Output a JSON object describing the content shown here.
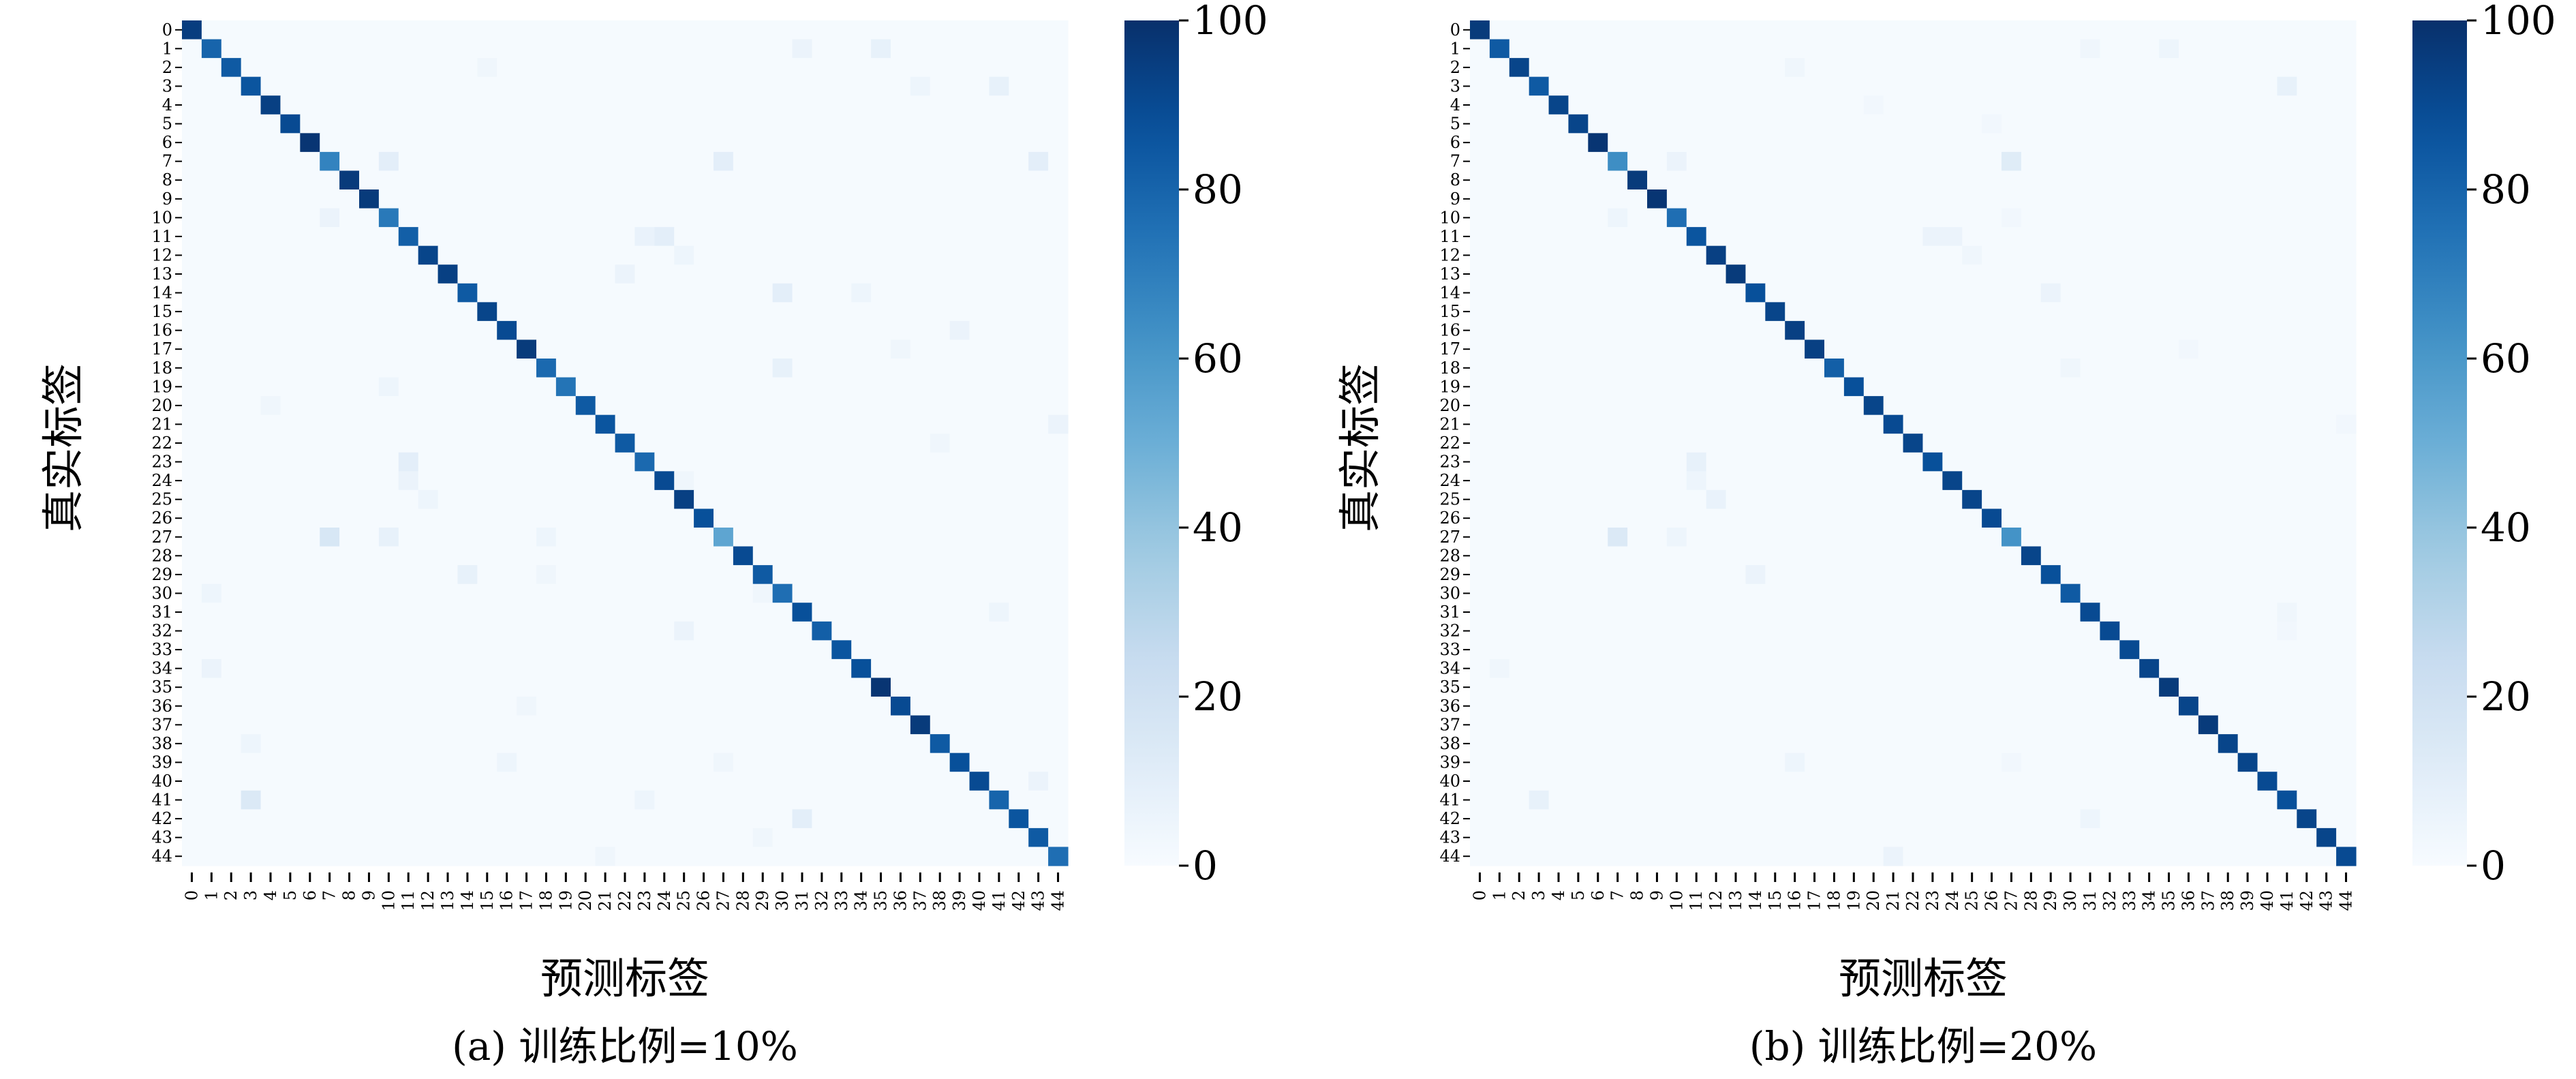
{
  "colors": {
    "cmap_low": "#f7fbff",
    "cmap_mid": "#6baed6",
    "cmap_high": "#08306b"
  },
  "chart_data": [
    {
      "type": "heatmap",
      "caption": "(a) 训练比例=10%",
      "xlabel": "预测标签",
      "ylabel": "真实标签",
      "categories": [
        "0",
        "1",
        "2",
        "3",
        "4",
        "5",
        "6",
        "7",
        "8",
        "9",
        "10",
        "11",
        "12",
        "13",
        "14",
        "15",
        "16",
        "17",
        "18",
        "19",
        "20",
        "21",
        "22",
        "23",
        "24",
        "25",
        "26",
        "27",
        "28",
        "29",
        "30",
        "31",
        "32",
        "33",
        "34",
        "35",
        "36",
        "37",
        "38",
        "39",
        "40",
        "41",
        "42",
        "43",
        "44"
      ],
      "diagonal": [
        95,
        80,
        84,
        86,
        94,
        90,
        98,
        68,
        96,
        96,
        72,
        82,
        92,
        94,
        84,
        92,
        90,
        96,
        78,
        74,
        84,
        86,
        84,
        78,
        90,
        94,
        88,
        54,
        90,
        84,
        76,
        88,
        82,
        86,
        88,
        98,
        90,
        96,
        84,
        88,
        90,
        80,
        86,
        84,
        76
      ],
      "off_diagonal": [
        {
          "row": 1,
          "col": 31,
          "value": 6
        },
        {
          "row": 1,
          "col": 35,
          "value": 8
        },
        {
          "row": 2,
          "col": 15,
          "value": 4
        },
        {
          "row": 3,
          "col": 37,
          "value": 5
        },
        {
          "row": 3,
          "col": 41,
          "value": 8
        },
        {
          "row": 7,
          "col": 10,
          "value": 10
        },
        {
          "row": 7,
          "col": 27,
          "value": 10
        },
        {
          "row": 7,
          "col": 43,
          "value": 10
        },
        {
          "row": 10,
          "col": 7,
          "value": 6
        },
        {
          "row": 11,
          "col": 23,
          "value": 7
        },
        {
          "row": 11,
          "col": 24,
          "value": 10
        },
        {
          "row": 12,
          "col": 25,
          "value": 5
        },
        {
          "row": 13,
          "col": 22,
          "value": 6
        },
        {
          "row": 14,
          "col": 30,
          "value": 10
        },
        {
          "row": 14,
          "col": 34,
          "value": 5
        },
        {
          "row": 16,
          "col": 39,
          "value": 6
        },
        {
          "row": 17,
          "col": 36,
          "value": 4
        },
        {
          "row": 18,
          "col": 30,
          "value": 8
        },
        {
          "row": 19,
          "col": 10,
          "value": 5
        },
        {
          "row": 20,
          "col": 4,
          "value": 4
        },
        {
          "row": 21,
          "col": 44,
          "value": 6
        },
        {
          "row": 22,
          "col": 38,
          "value": 4
        },
        {
          "row": 23,
          "col": 11,
          "value": 10
        },
        {
          "row": 24,
          "col": 11,
          "value": 6
        },
        {
          "row": 24,
          "col": 25,
          "value": 4
        },
        {
          "row": 25,
          "col": 12,
          "value": 5
        },
        {
          "row": 27,
          "col": 7,
          "value": 16
        },
        {
          "row": 27,
          "col": 10,
          "value": 8
        },
        {
          "row": 27,
          "col": 18,
          "value": 5
        },
        {
          "row": 29,
          "col": 14,
          "value": 8
        },
        {
          "row": 29,
          "col": 18,
          "value": 4
        },
        {
          "row": 30,
          "col": 1,
          "value": 5
        },
        {
          "row": 30,
          "col": 29,
          "value": 4
        },
        {
          "row": 31,
          "col": 41,
          "value": 5
        },
        {
          "row": 32,
          "col": 25,
          "value": 6
        },
        {
          "row": 34,
          "col": 1,
          "value": 6
        },
        {
          "row": 36,
          "col": 17,
          "value": 4
        },
        {
          "row": 38,
          "col": 3,
          "value": 5
        },
        {
          "row": 39,
          "col": 16,
          "value": 5
        },
        {
          "row": 39,
          "col": 27,
          "value": 4
        },
        {
          "row": 40,
          "col": 43,
          "value": 6
        },
        {
          "row": 41,
          "col": 3,
          "value": 14
        },
        {
          "row": 41,
          "col": 23,
          "value": 5
        },
        {
          "row": 42,
          "col": 31,
          "value": 10
        },
        {
          "row": 43,
          "col": 29,
          "value": 4
        },
        {
          "row": 44,
          "col": 21,
          "value": 4
        }
      ],
      "colorbar": {
        "min": 0,
        "max": 100,
        "ticks": [
          "0",
          "20",
          "40",
          "60",
          "80",
          "100"
        ]
      }
    },
    {
      "type": "heatmap",
      "caption": "(b) 训练比例=20%",
      "xlabel": "预测标签",
      "ylabel": "真实标签",
      "categories": [
        "0",
        "1",
        "2",
        "3",
        "4",
        "5",
        "6",
        "7",
        "8",
        "9",
        "10",
        "11",
        "12",
        "13",
        "14",
        "15",
        "16",
        "17",
        "18",
        "19",
        "20",
        "21",
        "22",
        "23",
        "24",
        "25",
        "26",
        "27",
        "28",
        "29",
        "30",
        "31",
        "32",
        "33",
        "34",
        "35",
        "36",
        "37",
        "38",
        "39",
        "40",
        "41",
        "42",
        "43",
        "44"
      ],
      "diagonal": [
        96,
        84,
        92,
        84,
        92,
        92,
        98,
        64,
        96,
        98,
        76,
        86,
        94,
        96,
        88,
        92,
        94,
        94,
        82,
        88,
        92,
        90,
        92,
        88,
        92,
        92,
        90,
        62,
        92,
        88,
        84,
        90,
        90,
        90,
        92,
        96,
        92,
        96,
        92,
        92,
        90,
        88,
        92,
        92,
        90
      ],
      "off_diagonal": [
        {
          "row": 1,
          "col": 31,
          "value": 4
        },
        {
          "row": 1,
          "col": 35,
          "value": 5
        },
        {
          "row": 2,
          "col": 16,
          "value": 4
        },
        {
          "row": 3,
          "col": 41,
          "value": 8
        },
        {
          "row": 4,
          "col": 20,
          "value": 3
        },
        {
          "row": 5,
          "col": 26,
          "value": 3
        },
        {
          "row": 7,
          "col": 10,
          "value": 6
        },
        {
          "row": 7,
          "col": 27,
          "value": 12
        },
        {
          "row": 10,
          "col": 7,
          "value": 5
        },
        {
          "row": 10,
          "col": 27,
          "value": 3
        },
        {
          "row": 11,
          "col": 23,
          "value": 6
        },
        {
          "row": 11,
          "col": 24,
          "value": 6
        },
        {
          "row": 12,
          "col": 25,
          "value": 4
        },
        {
          "row": 14,
          "col": 29,
          "value": 6
        },
        {
          "row": 17,
          "col": 36,
          "value": 3
        },
        {
          "row": 18,
          "col": 30,
          "value": 4
        },
        {
          "row": 21,
          "col": 44,
          "value": 3
        },
        {
          "row": 23,
          "col": 11,
          "value": 8
        },
        {
          "row": 24,
          "col": 11,
          "value": 5
        },
        {
          "row": 25,
          "col": 12,
          "value": 7
        },
        {
          "row": 27,
          "col": 7,
          "value": 14
        },
        {
          "row": 27,
          "col": 10,
          "value": 5
        },
        {
          "row": 29,
          "col": 14,
          "value": 6
        },
        {
          "row": 31,
          "col": 41,
          "value": 4
        },
        {
          "row": 32,
          "col": 41,
          "value": 3
        },
        {
          "row": 34,
          "col": 1,
          "value": 4
        },
        {
          "row": 39,
          "col": 16,
          "value": 5
        },
        {
          "row": 39,
          "col": 27,
          "value": 3
        },
        {
          "row": 41,
          "col": 3,
          "value": 8
        },
        {
          "row": 42,
          "col": 31,
          "value": 5
        },
        {
          "row": 44,
          "col": 21,
          "value": 6
        }
      ],
      "colorbar": {
        "min": 0,
        "max": 100,
        "ticks": [
          "0",
          "20",
          "40",
          "60",
          "80",
          "100"
        ]
      }
    }
  ]
}
